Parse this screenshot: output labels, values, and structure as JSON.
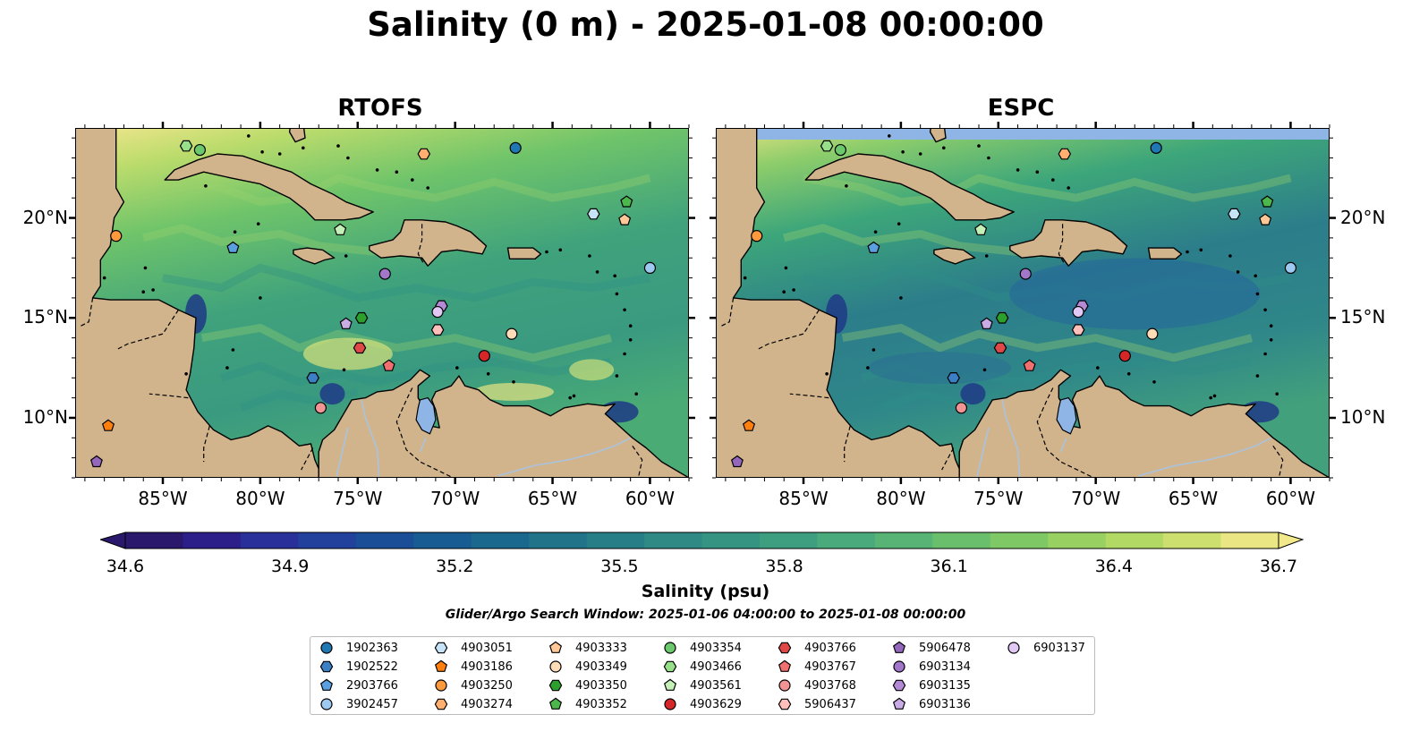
{
  "title": "Salinity (0 m) - 2025-01-08 00:00:00",
  "panels": [
    {
      "title": "RTOFS",
      "model": "rtofs"
    },
    {
      "title": "ESPC",
      "model": "espc"
    }
  ],
  "map_extent": {
    "lon_min": -89.5,
    "lon_max": -58.0,
    "lat_min": 7.0,
    "lat_max": 24.5
  },
  "lon_ticks": [
    {
      "value": -85,
      "label": "85°W"
    },
    {
      "value": -80,
      "label": "80°W"
    },
    {
      "value": -75,
      "label": "75°W"
    },
    {
      "value": -70,
      "label": "70°W"
    },
    {
      "value": -65,
      "label": "65°W"
    },
    {
      "value": -60,
      "label": "60°W"
    }
  ],
  "lat_ticks": [
    {
      "value": 20,
      "label": "20°N"
    },
    {
      "value": 15,
      "label": "15°N"
    },
    {
      "value": 10,
      "label": "10°N"
    }
  ],
  "colorbar": {
    "label": "Salinity (psu)",
    "min": 34.6,
    "max": 36.7,
    "ticks": [
      "34.6",
      "34.9",
      "35.2",
      "35.5",
      "35.8",
      "36.1",
      "36.4",
      "36.7"
    ],
    "colormap": "haline",
    "extend": "both"
  },
  "search_window": "Glider/Argo Search Window: 2025-01-06 04:00:00 to 2025-01-08 00:00:00",
  "colors": {
    "land": "#d2b48c",
    "ocean_low": "#2a1a6b",
    "ocean_high": "#f2e98a",
    "no_data": "#8fb5e6",
    "lake": "#8fb5e6"
  },
  "legend": [
    {
      "id": "1902363",
      "marker": "circle",
      "color": "#1f77b4"
    },
    {
      "id": "1902522",
      "marker": "hexagon",
      "color": "#3b7fc4"
    },
    {
      "id": "2903766",
      "marker": "pentagon",
      "color": "#5aa0e0"
    },
    {
      "id": "3902457",
      "marker": "circle",
      "color": "#9ec9f0"
    },
    {
      "id": "4903051",
      "marker": "hexagon",
      "color": "#c6e3f7"
    },
    {
      "id": "4903186",
      "marker": "pentagon",
      "color": "#ff7f0e"
    },
    {
      "id": "4903250",
      "marker": "circle",
      "color": "#ff9a3c"
    },
    {
      "id": "4903274",
      "marker": "hexagon",
      "color": "#ffb070"
    },
    {
      "id": "4903333",
      "marker": "pentagon",
      "color": "#ffc896"
    },
    {
      "id": "4903349",
      "marker": "circle",
      "color": "#ffdcb8"
    },
    {
      "id": "4903350",
      "marker": "hexagon",
      "color": "#2ca02c"
    },
    {
      "id": "4903352",
      "marker": "pentagon",
      "color": "#4cb84c"
    },
    {
      "id": "4903354",
      "marker": "circle",
      "color": "#6cc86c"
    },
    {
      "id": "4903466",
      "marker": "hexagon",
      "color": "#98df8a"
    },
    {
      "id": "4903561",
      "marker": "pentagon",
      "color": "#c4f0b8"
    },
    {
      "id": "4903629",
      "marker": "circle",
      "color": "#d62728"
    },
    {
      "id": "4903766",
      "marker": "hexagon",
      "color": "#e04848"
    },
    {
      "id": "4903767",
      "marker": "pentagon",
      "color": "#f07070"
    },
    {
      "id": "4903768",
      "marker": "circle",
      "color": "#f29494"
    },
    {
      "id": "5906437",
      "marker": "hexagon",
      "color": "#ffc0bc"
    },
    {
      "id": "5906478",
      "marker": "pentagon",
      "color": "#9467bd"
    },
    {
      "id": "6903134",
      "marker": "circle",
      "color": "#a276c8"
    },
    {
      "id": "6903135",
      "marker": "hexagon",
      "color": "#b48ad4"
    },
    {
      "id": "6903136",
      "marker": "pentagon",
      "color": "#c9abe6"
    },
    {
      "id": "6903137",
      "marker": "circle",
      "color": "#e2c8f5"
    }
  ],
  "floats": [
    {
      "lon": -83.8,
      "lat": 23.6,
      "marker": "hexagon",
      "color": "#98df8a"
    },
    {
      "lon": -83.1,
      "lat": 23.4,
      "marker": "circle",
      "color": "#6cc86c"
    },
    {
      "lon": -71.6,
      "lat": 23.2,
      "marker": "hexagon",
      "color": "#ffb070"
    },
    {
      "lon": -66.9,
      "lat": 23.5,
      "marker": "circle",
      "color": "#1f77b4"
    },
    {
      "lon": -61.2,
      "lat": 20.8,
      "marker": "pentagon",
      "color": "#4cb84c"
    },
    {
      "lon": -62.9,
      "lat": 20.2,
      "marker": "hexagon",
      "color": "#c6e3f7"
    },
    {
      "lon": -61.3,
      "lat": 19.9,
      "marker": "pentagon",
      "color": "#ffc896"
    },
    {
      "lon": -87.4,
      "lat": 19.1,
      "marker": "circle",
      "color": "#ff9a3c"
    },
    {
      "lon": -81.4,
      "lat": 18.5,
      "marker": "pentagon",
      "color": "#5aa0e0"
    },
    {
      "lon": -75.9,
      "lat": 19.4,
      "marker": "pentagon",
      "color": "#c4f0b8"
    },
    {
      "lon": -73.6,
      "lat": 17.2,
      "marker": "circle",
      "color": "#a276c8"
    },
    {
      "lon": -60.0,
      "lat": 17.5,
      "marker": "circle",
      "color": "#9ec9f0"
    },
    {
      "lon": -70.7,
      "lat": 15.6,
      "marker": "hexagon",
      "color": "#b48ad4"
    },
    {
      "lon": -70.9,
      "lat": 15.3,
      "marker": "circle",
      "color": "#e2c8f5"
    },
    {
      "lon": -74.8,
      "lat": 15.0,
      "marker": "hexagon",
      "color": "#2ca02c"
    },
    {
      "lon": -75.6,
      "lat": 14.7,
      "marker": "pentagon",
      "color": "#c9abe6"
    },
    {
      "lon": -70.9,
      "lat": 14.4,
      "marker": "hexagon",
      "color": "#ffc0bc"
    },
    {
      "lon": -67.1,
      "lat": 14.2,
      "marker": "circle",
      "color": "#ffdcb8"
    },
    {
      "lon": -74.9,
      "lat": 13.5,
      "marker": "hexagon",
      "color": "#e04848"
    },
    {
      "lon": -68.5,
      "lat": 13.1,
      "marker": "circle",
      "color": "#d62728"
    },
    {
      "lon": -73.4,
      "lat": 12.6,
      "marker": "pentagon",
      "color": "#f07070"
    },
    {
      "lon": -77.3,
      "lat": 12.0,
      "marker": "hexagon",
      "color": "#3b7fc4"
    },
    {
      "lon": -76.9,
      "lat": 10.5,
      "marker": "circle",
      "color": "#f29494"
    },
    {
      "lon": -87.8,
      "lat": 9.6,
      "marker": "pentagon",
      "color": "#ff7f0e"
    },
    {
      "lon": -88.4,
      "lat": 7.8,
      "marker": "pentagon",
      "color": "#9467bd"
    }
  ]
}
